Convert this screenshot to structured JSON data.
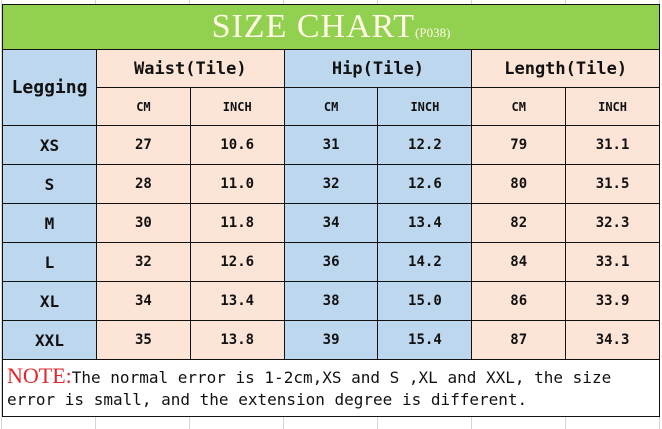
{
  "title": "SIZE CHART",
  "code": "(P038)",
  "header": {
    "first": "Legging",
    "groups": [
      "Waist(Tile)",
      "Hip(Tile)",
      "Length(Tile)"
    ],
    "units": [
      "CM",
      "INCH",
      "CM",
      "INCH",
      "CM",
      "INCH"
    ]
  },
  "rows": [
    {
      "size": "XS",
      "values": [
        "27",
        "10.6",
        "31",
        "12.2",
        "79",
        "31.1"
      ]
    },
    {
      "size": "S",
      "values": [
        "28",
        "11.0",
        "32",
        "12.6",
        "80",
        "31.5"
      ]
    },
    {
      "size": "M",
      "values": [
        "30",
        "11.8",
        "34",
        "13.4",
        "82",
        "32.3"
      ]
    },
    {
      "size": "L",
      "values": [
        "32",
        "12.6",
        "36",
        "14.2",
        "84",
        "33.1"
      ]
    },
    {
      "size": "XL",
      "values": [
        "34",
        "13.4",
        "38",
        "15.0",
        "86",
        "33.9"
      ]
    },
    {
      "size": "XXL",
      "values": [
        "35",
        "13.8",
        "39",
        "15.4",
        "87",
        "34.3"
      ]
    }
  ],
  "note": {
    "label": "NOTE:",
    "text": "The normal error is 1-2cm,XS and S ,XL and XXL, the size error is small, and the extension degree is different."
  },
  "colors": {
    "title_bg": "#92d050",
    "peach": "#fce4d6",
    "blue": "#bdd7ee",
    "note_label": "#e0262b"
  }
}
